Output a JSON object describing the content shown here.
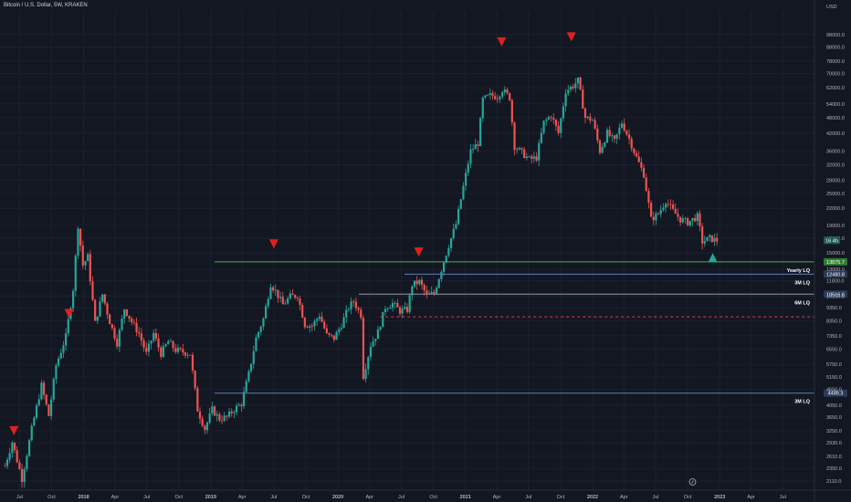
{
  "header": {
    "title": "Bitcoin / U.S. Dollar, 5W, KRAKEN"
  },
  "chart_data": {
    "type": "candlestick",
    "currency": "USD",
    "y_scale": "log",
    "ylim": [
      1950,
      120000
    ],
    "xlim": [
      "2017-05-06",
      "2023-09-30"
    ],
    "price_ticks": [
      2110,
      2350,
      2610,
      2930,
      3250,
      3650,
      4050,
      4650,
      5150,
      5750,
      6550,
      7350,
      8350,
      9350,
      10350,
      11800,
      13000,
      15000,
      17000,
      19000,
      22000,
      25000,
      28000,
      32000,
      36000,
      42000,
      48000,
      54000,
      62000,
      70000,
      78000,
      88000,
      98000
    ],
    "price_tick_labels": [
      "2110.0",
      "2350.0",
      "2610.0",
      "2930.0",
      "3250.0",
      "3650.0",
      "4050.0",
      "4650.0",
      "5150.0",
      "5750.0",
      "6550.0",
      "7350.0",
      "8350.0",
      "9350.0",
      "10350.0",
      "11800.0",
      "13000.0",
      "15000.0",
      "17000.0",
      "19000.0",
      "22000.0",
      "25000.0",
      "28000.0",
      "32000.0",
      "36000.0",
      "42000.0",
      "48000.0",
      "54000.0",
      "62000.0",
      "70000.0",
      "78000.0",
      "88000.0",
      "98000.0"
    ],
    "time_ticks": [
      {
        "date": "2017-07-01",
        "label": "Jul",
        "bold": false
      },
      {
        "date": "2017-10-01",
        "label": "Oct",
        "bold": false
      },
      {
        "date": "2018-01-01",
        "label": "2018",
        "bold": true
      },
      {
        "date": "2018-04-01",
        "label": "Apr",
        "bold": false
      },
      {
        "date": "2018-07-01",
        "label": "Jul",
        "bold": false
      },
      {
        "date": "2018-10-01",
        "label": "Oct",
        "bold": false
      },
      {
        "date": "2019-01-01",
        "label": "2019",
        "bold": true
      },
      {
        "date": "2019-04-01",
        "label": "Apr",
        "bold": false
      },
      {
        "date": "2019-07-01",
        "label": "Jul",
        "bold": false
      },
      {
        "date": "2019-10-01",
        "label": "Oct",
        "bold": false
      },
      {
        "date": "2020-01-01",
        "label": "2020",
        "bold": true
      },
      {
        "date": "2020-04-01",
        "label": "Apr",
        "bold": false
      },
      {
        "date": "2020-07-01",
        "label": "Jul",
        "bold": false
      },
      {
        "date": "2020-10-01",
        "label": "Oct",
        "bold": false
      },
      {
        "date": "2021-01-01",
        "label": "2021",
        "bold": true
      },
      {
        "date": "2021-04-01",
        "label": "Apr",
        "bold": false
      },
      {
        "date": "2021-07-01",
        "label": "Jul",
        "bold": false
      },
      {
        "date": "2021-10-01",
        "label": "Oct",
        "bold": false
      },
      {
        "date": "2022-01-01",
        "label": "2022",
        "bold": true
      },
      {
        "date": "2022-04-01",
        "label": "Apr",
        "bold": false
      },
      {
        "date": "2022-07-01",
        "label": "Jul",
        "bold": false
      },
      {
        "date": "2022-10-01",
        "label": "Oct",
        "bold": false
      },
      {
        "date": "2023-01-01",
        "label": "2023",
        "bold": true
      },
      {
        "date": "2023-04-01",
        "label": "Apr",
        "bold": false
      },
      {
        "date": "2023-07-01",
        "label": "Jul",
        "bold": false
      }
    ],
    "last_price": {
      "value": 16700,
      "label": "16 4h"
    },
    "path": [
      [
        "2017-05-20",
        2400
      ],
      [
        "2017-06-10",
        2950
      ],
      [
        "2017-07-08",
        2150
      ],
      [
        "2017-08-05",
        3300
      ],
      [
        "2017-09-02",
        4800
      ],
      [
        "2017-09-23",
        3700
      ],
      [
        "2017-10-14",
        5700
      ],
      [
        "2017-11-11",
        7300
      ],
      [
        "2017-12-02",
        11000
      ],
      [
        "2017-12-16",
        19000
      ],
      [
        "2017-12-30",
        13500
      ],
      [
        "2018-01-13",
        14500
      ],
      [
        "2018-02-03",
        8200
      ],
      [
        "2018-02-24",
        10500
      ],
      [
        "2018-03-17",
        8300
      ],
      [
        "2018-04-07",
        6900
      ],
      [
        "2018-04-28",
        9300
      ],
      [
        "2018-05-19",
        8300
      ],
      [
        "2018-06-09",
        7500
      ],
      [
        "2018-06-30",
        6300
      ],
      [
        "2018-07-21",
        7500
      ],
      [
        "2018-08-11",
        6300
      ],
      [
        "2018-09-01",
        7000
      ],
      [
        "2018-09-22",
        6500
      ],
      [
        "2018-10-13",
        6400
      ],
      [
        "2018-11-03",
        6300
      ],
      [
        "2018-11-24",
        3900
      ],
      [
        "2018-12-15",
        3300
      ],
      [
        "2019-01-05",
        3900
      ],
      [
        "2019-01-26",
        3600
      ],
      [
        "2019-02-16",
        3650
      ],
      [
        "2019-03-09",
        3900
      ],
      [
        "2019-03-30",
        4100
      ],
      [
        "2019-04-20",
        5300
      ],
      [
        "2019-05-11",
        7200
      ],
      [
        "2019-06-01",
        8500
      ],
      [
        "2019-06-22",
        11500
      ],
      [
        "2019-07-06",
        10800
      ],
      [
        "2019-07-27",
        9600
      ],
      [
        "2019-08-17",
        10300
      ],
      [
        "2019-09-07",
        10400
      ],
      [
        "2019-09-28",
        8100
      ],
      [
        "2019-10-19",
        8000
      ],
      [
        "2019-11-09",
        8800
      ],
      [
        "2019-11-30",
        7400
      ],
      [
        "2019-12-21",
        7200
      ],
      [
        "2020-01-11",
        8100
      ],
      [
        "2020-02-01",
        9400
      ],
      [
        "2020-02-15",
        9900
      ],
      [
        "2020-03-07",
        8800
      ],
      [
        "2020-03-14",
        5200
      ],
      [
        "2020-04-04",
        6800
      ],
      [
        "2020-04-25",
        7600
      ],
      [
        "2020-05-16",
        9400
      ],
      [
        "2020-06-06",
        9700
      ],
      [
        "2020-06-27",
        9100
      ],
      [
        "2020-07-18",
        9200
      ],
      [
        "2020-08-01",
        11400
      ],
      [
        "2020-08-22",
        11700
      ],
      [
        "2020-09-12",
        10400
      ],
      [
        "2020-10-03",
        10600
      ],
      [
        "2020-10-24",
        13000
      ],
      [
        "2020-11-14",
        16000
      ],
      [
        "2020-12-05",
        19200
      ],
      [
        "2020-12-26",
        26500
      ],
      [
        "2021-01-16",
        36000
      ],
      [
        "2021-02-06",
        38500
      ],
      [
        "2021-02-20",
        56000
      ],
      [
        "2021-03-13",
        58000
      ],
      [
        "2021-04-03",
        57500
      ],
      [
        "2021-04-17",
        61000
      ],
      [
        "2021-05-08",
        57000
      ],
      [
        "2021-05-22",
        37500
      ],
      [
        "2021-06-12",
        35500
      ],
      [
        "2021-07-03",
        33500
      ],
      [
        "2021-07-24",
        34000
      ],
      [
        "2021-08-14",
        46000
      ],
      [
        "2021-09-04",
        49000
      ],
      [
        "2021-09-25",
        42000
      ],
      [
        "2021-10-16",
        60500
      ],
      [
        "2021-11-06",
        63000
      ],
      [
        "2021-11-20",
        66000
      ],
      [
        "2021-12-11",
        48000
      ],
      [
        "2022-01-01",
        47000
      ],
      [
        "2022-01-22",
        36000
      ],
      [
        "2022-02-12",
        42000
      ],
      [
        "2022-03-05",
        39000
      ],
      [
        "2022-03-26",
        46000
      ],
      [
        "2022-04-16",
        40000
      ],
      [
        "2022-05-07",
        34000
      ],
      [
        "2022-05-28",
        29500
      ],
      [
        "2022-06-18",
        20000
      ],
      [
        "2022-07-09",
        21000
      ],
      [
        "2022-07-30",
        23500
      ],
      [
        "2022-08-20",
        21500
      ],
      [
        "2022-09-10",
        20000
      ],
      [
        "2022-10-01",
        19500
      ],
      [
        "2022-10-29",
        20500
      ],
      [
        "2022-11-12",
        16500
      ],
      [
        "2022-12-03",
        17000
      ],
      [
        "2022-12-24",
        16700
      ]
    ],
    "levels": [
      {
        "label": "Yearly LQ",
        "value": 13875.7,
        "value_label": "13875.7",
        "from": "2019-01-12",
        "color": "#4caf50"
      },
      {
        "label": "3M LQ",
        "value": 12480.8,
        "value_label": "12480.8",
        "from": "2020-07-10",
        "color": "#5d7fb5"
      },
      {
        "label": "6M LQ",
        "value": 10516.6,
        "value_label": "10516.6",
        "from": "2020-03-01",
        "color": "#9598a1"
      },
      {
        "label": "",
        "value": 8650,
        "value_label": "",
        "from": "2020-05-01",
        "color": "#f23645",
        "dashed": true
      },
      {
        "label": "3M LQ",
        "value": 4489.3,
        "value_label": "4489.3",
        "from": "2019-01-12",
        "color": "#5d7fb5"
      }
    ],
    "markers": [
      {
        "type": "down",
        "date": "2017-06-15",
        "price": 3250,
        "color": "#e02020"
      },
      {
        "type": "down",
        "date": "2017-11-20",
        "price": 8900,
        "color": "#e02020"
      },
      {
        "type": "down",
        "date": "2019-07-01",
        "price": 16200,
        "color": "#e02020"
      },
      {
        "type": "down",
        "date": "2020-08-20",
        "price": 15100,
        "color": "#e02020"
      },
      {
        "type": "down",
        "date": "2021-04-15",
        "price": 92000,
        "color": "#e02020"
      },
      {
        "type": "down",
        "date": "2021-11-01",
        "price": 96000,
        "color": "#e02020"
      },
      {
        "type": "up",
        "date": "2022-12-12",
        "price": 14400,
        "color": "#26a69a"
      }
    ],
    "colors": {
      "up": "#26a69a",
      "down": "#ef5350",
      "grid": "#1c2030",
      "text": "#b2b5be",
      "background": "#131722"
    }
  }
}
